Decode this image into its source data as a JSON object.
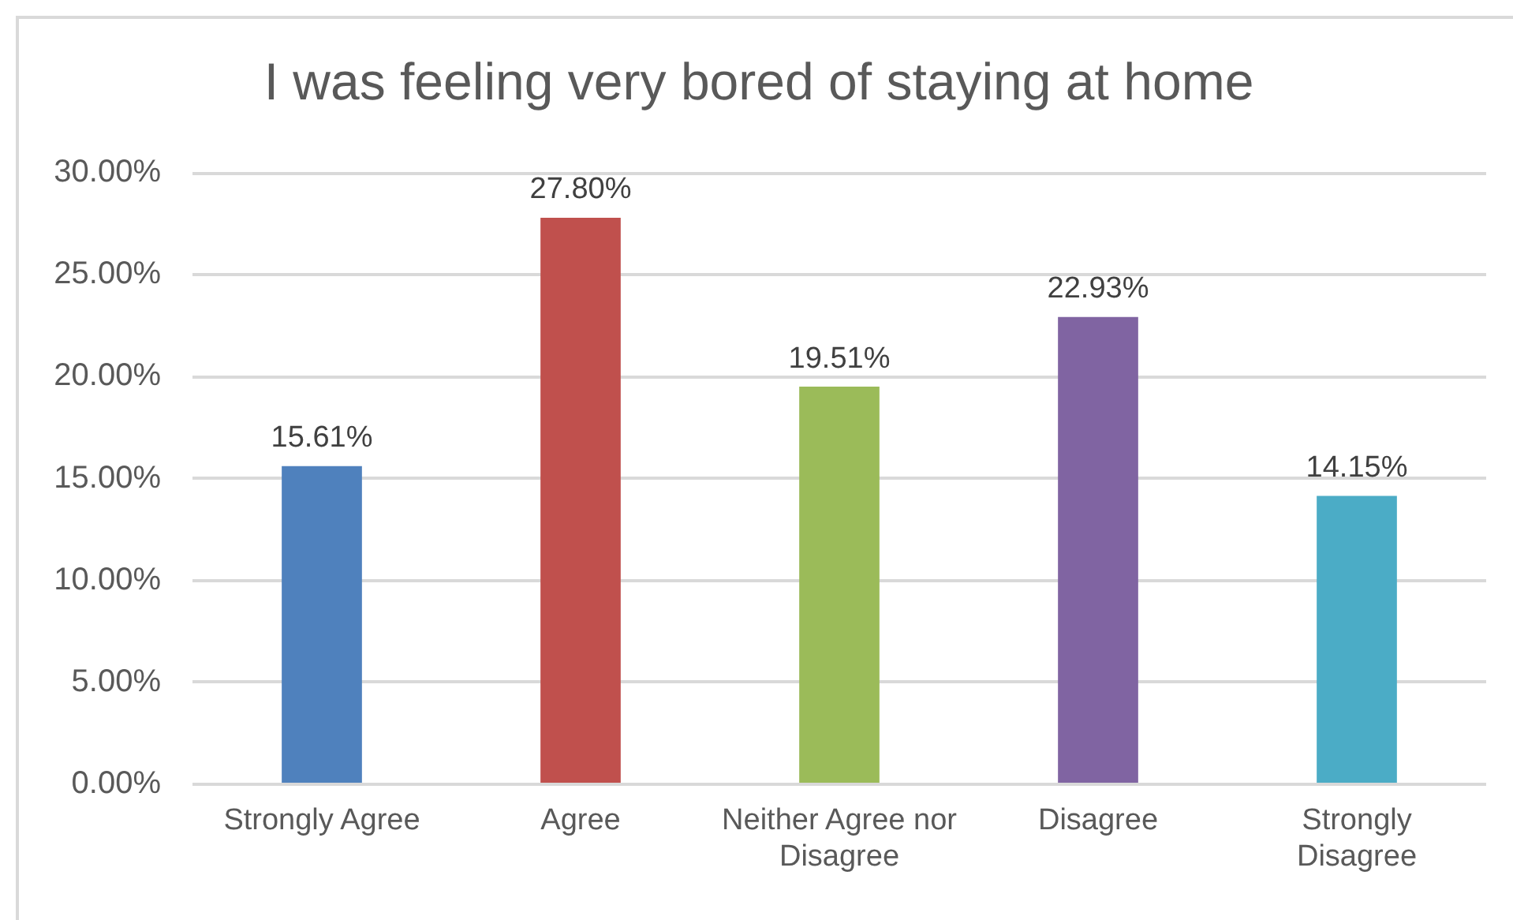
{
  "chart_data": {
    "type": "bar",
    "title": "I was feeling very bored of staying at home",
    "categories": [
      "Strongly Agree",
      "Agree",
      "Neither Agree nor Disagree",
      "Disagree",
      "Strongly Disagree"
    ],
    "values": [
      15.61,
      27.8,
      19.51,
      22.93,
      14.15
    ],
    "colors": [
      "#4f81bd",
      "#c0504d",
      "#9bbb59",
      "#8064a2",
      "#4bacc6"
    ],
    "value_labels": [
      "15.61%",
      "27.80%",
      "19.51%",
      "22.93%",
      "14.15%"
    ],
    "ylim": [
      0,
      30
    ],
    "yticks": [
      {
        "value": 0,
        "label": "0.00%"
      },
      {
        "value": 5,
        "label": "5.00%"
      },
      {
        "value": 10,
        "label": "10.00%"
      },
      {
        "value": 15,
        "label": "15.00%"
      },
      {
        "value": 20,
        "label": "20.00%"
      },
      {
        "value": 25,
        "label": "25.00%"
      },
      {
        "value": 30,
        "label": "30.00%"
      }
    ],
    "grid": "y",
    "legend": false
  }
}
